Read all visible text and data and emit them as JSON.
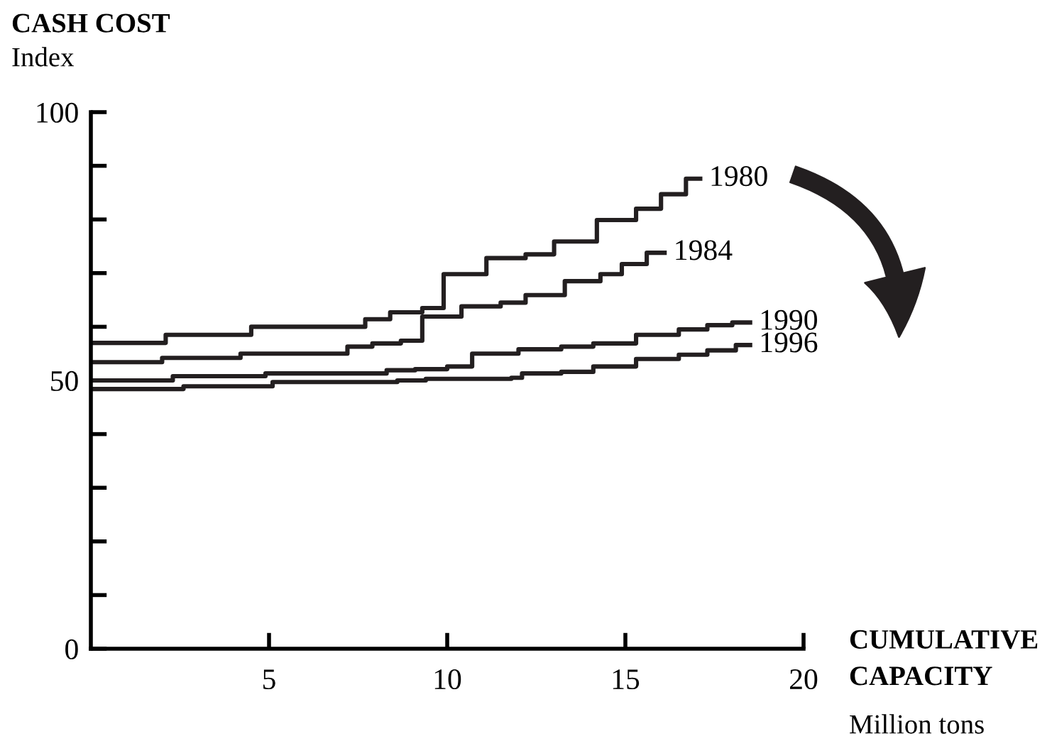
{
  "chart_data": {
    "type": "step",
    "ylabel": "CASH COST",
    "xlabel": "CUMULATIVE\nCAPACITY",
    "annotations": [
      "Index",
      "Million tons"
    ],
    "xlim": [
      0,
      20
    ],
    "ylim": [
      0,
      100
    ],
    "xticks": [
      5,
      10,
      15,
      20
    ],
    "yticks": [
      0,
      {
        "value": 10,
        "label": null
      },
      {
        "value": 20,
        "label": null
      },
      {
        "value": 30,
        "label": null
      },
      {
        "value": 40,
        "label": null
      },
      50,
      {
        "value": 60,
        "label": null
      },
      {
        "value": 70,
        "label": null
      },
      {
        "value": 80,
        "label": null
      },
      {
        "value": 90,
        "label": null
      },
      100
    ],
    "grid": false,
    "legend": false,
    "marker": "none",
    "line_style": "solid",
    "series": [
      {
        "name": "1980",
        "color": "#231f20",
        "x": [
          0,
          2.1,
          4.5,
          7.7,
          8.4,
          9.3,
          9.9,
          11.1,
          12.2,
          13.0,
          14.2,
          15.3,
          16.0,
          16.7,
          17.1
        ],
        "values": [
          57,
          58.5,
          60,
          61.4,
          62.7,
          63.5,
          69.8,
          72.8,
          73.5,
          75.9,
          79.9,
          82,
          84.7,
          87.6,
          87.6
        ]
      },
      {
        "name": "1984",
        "color": "#231f20",
        "x": [
          0,
          2.0,
          4.2,
          7.2,
          7.9,
          8.7,
          9.3,
          10.4,
          11.5,
          12.2,
          13.3,
          14.3,
          14.9,
          15.6,
          16.1
        ],
        "values": [
          53.4,
          54.2,
          55,
          56.3,
          56.9,
          57.4,
          61.9,
          63.8,
          64.5,
          65.9,
          68.5,
          69.8,
          71.7,
          73.8,
          73.8
        ]
      },
      {
        "name": "1990",
        "color": "#231f20",
        "x": [
          0,
          2.3,
          4.9,
          8.3,
          9.1,
          10.0,
          10.7,
          12.0,
          13.2,
          14.1,
          15.3,
          16.5,
          17.3,
          18.0,
          18.5
        ],
        "values": [
          50,
          50.8,
          51.3,
          51.9,
          52.1,
          52.6,
          55,
          55.8,
          56.3,
          56.9,
          58.5,
          59.5,
          60.3,
          60.8,
          60.8
        ]
      },
      {
        "name": "1996",
        "color": "#231f20",
        "x": [
          0,
          2.6,
          5.1,
          8.6,
          9.4,
          11.8,
          12.1,
          13.2,
          14.1,
          15.3,
          16.5,
          17.3,
          18.1,
          18.5
        ],
        "values": [
          48.4,
          48.9,
          49.7,
          50,
          50.3,
          50.5,
          51.3,
          51.6,
          52.6,
          54,
          54.8,
          55.6,
          56.6,
          56.6
        ]
      }
    ]
  }
}
